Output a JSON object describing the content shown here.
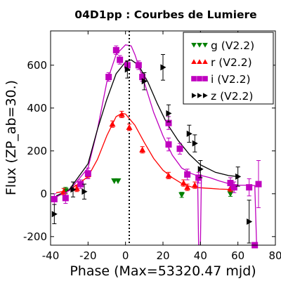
{
  "chart_data": {
    "type": "scatter",
    "title": "04D1pp : Courbes de Lumiere",
    "xlabel": "Phase (Max=53320.47 mjd)",
    "ylabel": "Flux (ZP_ab=30.)",
    "xlim": [
      -40,
      80
    ],
    "ylim": [
      -240,
      760
    ],
    "xticks": [
      -40,
      -20,
      0,
      20,
      40,
      60,
      80
    ],
    "yticks": [
      -200,
      0,
      200,
      400,
      600
    ],
    "grid": false,
    "legend_position": "top-right",
    "vline_x": 2,
    "series": [
      {
        "name": "g (V2.2)",
        "color": "#008000",
        "marker": "triangle-down",
        "points": [
          {
            "x": -32,
            "y": 15,
            "err": 15
          },
          {
            "x": -6,
            "y": 60,
            "err": 0
          },
          {
            "x": -4,
            "y": 60,
            "err": 0
          },
          {
            "x": 30,
            "y": -5,
            "err": 12
          },
          {
            "x": 56,
            "y": 0,
            "err": 12
          }
        ],
        "curve": []
      },
      {
        "name": "r (V2.2)",
        "color": "#ff0000",
        "marker": "triangle-up",
        "points": [
          {
            "x": -33,
            "y": 10,
            "err": 15
          },
          {
            "x": -26,
            "y": 25,
            "err": 15
          },
          {
            "x": -20,
            "y": 90,
            "err": 15
          },
          {
            "x": -7,
            "y": 325,
            "err": 15
          },
          {
            "x": -2,
            "y": 370,
            "err": 15
          },
          {
            "x": 2,
            "y": 310,
            "err": 15
          },
          {
            "x": 9,
            "y": 205,
            "err": 15
          },
          {
            "x": 23,
            "y": 85,
            "err": 15
          },
          {
            "x": 31,
            "y": 50,
            "err": 15
          },
          {
            "x": 33,
            "y": 30,
            "err": 15
          },
          {
            "x": 37,
            "y": 40,
            "err": 15
          },
          {
            "x": 56,
            "y": 25,
            "err": 15
          }
        ],
        "curve": [
          [
            -37,
            5
          ],
          [
            -30,
            15
          ],
          [
            -20,
            80
          ],
          [
            -15,
            160
          ],
          [
            -10,
            270
          ],
          [
            -5,
            360
          ],
          [
            -2,
            375
          ],
          [
            0,
            372
          ],
          [
            5,
            320
          ],
          [
            10,
            240
          ],
          [
            15,
            165
          ],
          [
            20,
            110
          ],
          [
            25,
            75
          ],
          [
            30,
            48
          ],
          [
            35,
            32
          ],
          [
            40,
            28
          ],
          [
            45,
            25
          ],
          [
            50,
            22
          ],
          [
            56,
            20
          ]
        ]
      },
      {
        "name": "i (V2.2)",
        "color": "#bf00bf",
        "marker": "square",
        "points": [
          {
            "x": -38,
            "y": -25,
            "err": 25
          },
          {
            "x": -32,
            "y": -20,
            "err": 25
          },
          {
            "x": -24,
            "y": 45,
            "err": 20
          },
          {
            "x": -20,
            "y": 95,
            "err": 25
          },
          {
            "x": -9,
            "y": 545,
            "err": 20
          },
          {
            "x": -5,
            "y": 670,
            "err": 20
          },
          {
            "x": -3,
            "y": 625,
            "err": 20
          },
          {
            "x": 1,
            "y": 600,
            "err": 20
          },
          {
            "x": 7,
            "y": 600,
            "err": 20
          },
          {
            "x": 9,
            "y": 545,
            "err": 20
          },
          {
            "x": 23,
            "y": 330,
            "err": 30
          },
          {
            "x": 23,
            "y": 230,
            "err": 30
          },
          {
            "x": 29,
            "y": 210,
            "err": 25
          },
          {
            "x": 33,
            "y": 90,
            "err": 25
          },
          {
            "x": 39,
            "y": 75,
            "err": 25
          },
          {
            "x": 56,
            "y": 50,
            "err": 25
          },
          {
            "x": 58,
            "y": 30,
            "err": 25
          },
          {
            "x": 66,
            "y": 30,
            "err": 40
          },
          {
            "x": 69,
            "y": -240,
            "err": 0
          },
          {
            "x": 71,
            "y": 45,
            "err": 110
          }
        ],
        "curve": [
          [
            -37,
            -15
          ],
          [
            -30,
            15
          ],
          [
            -20,
            120
          ],
          [
            -15,
            300
          ],
          [
            -10,
            520
          ],
          [
            -5,
            650
          ],
          [
            0,
            695
          ],
          [
            3,
            690
          ],
          [
            5,
            650
          ],
          [
            10,
            520
          ],
          [
            15,
            380
          ],
          [
            20,
            270
          ],
          [
            25,
            180
          ],
          [
            30,
            120
          ],
          [
            35,
            95
          ],
          [
            38,
            85
          ],
          [
            38.5,
            85
          ],
          [
            39,
            -240
          ],
          [
            40,
            -240
          ],
          [
            40.5,
            85
          ],
          [
            45,
            75
          ],
          [
            50,
            60
          ],
          [
            56,
            45
          ],
          [
            60,
            40
          ],
          [
            63,
            40
          ],
          [
            66,
            40
          ],
          [
            69,
            38
          ],
          [
            70,
            -240
          ]
        ]
      },
      {
        "name": "z (V2.2)",
        "color": "#000000",
        "marker": "triangle-right",
        "points": [
          {
            "x": -38,
            "y": -95,
            "err": 45
          },
          {
            "x": -28,
            "y": 20,
            "err": 35
          },
          {
            "x": -22,
            "y": 10,
            "err": 35
          },
          {
            "x": 1,
            "y": 580,
            "err": 40
          },
          {
            "x": 10,
            "y": 525,
            "err": 40
          },
          {
            "x": 20,
            "y": 590,
            "err": 60
          },
          {
            "x": 23,
            "y": 375,
            "err": 40
          },
          {
            "x": 34,
            "y": 280,
            "err": 40
          },
          {
            "x": 37,
            "y": 235,
            "err": 40
          },
          {
            "x": 40,
            "y": 115,
            "err": 40
          },
          {
            "x": 60,
            "y": 80,
            "err": 45
          },
          {
            "x": 66,
            "y": -130,
            "err": 100
          }
        ],
        "curve": [
          [
            -37,
            -10
          ],
          [
            -30,
            20
          ],
          [
            -20,
            140
          ],
          [
            -15,
            300
          ],
          [
            -10,
            440
          ],
          [
            -5,
            560
          ],
          [
            0,
            615
          ],
          [
            3,
            625
          ],
          [
            7,
            600
          ],
          [
            12,
            520
          ],
          [
            17,
            420
          ],
          [
            22,
            330
          ],
          [
            28,
            250
          ],
          [
            34,
            185
          ],
          [
            40,
            135
          ],
          [
            48,
            100
          ],
          [
            55,
            85
          ],
          [
            60,
            80
          ]
        ]
      }
    ]
  }
}
